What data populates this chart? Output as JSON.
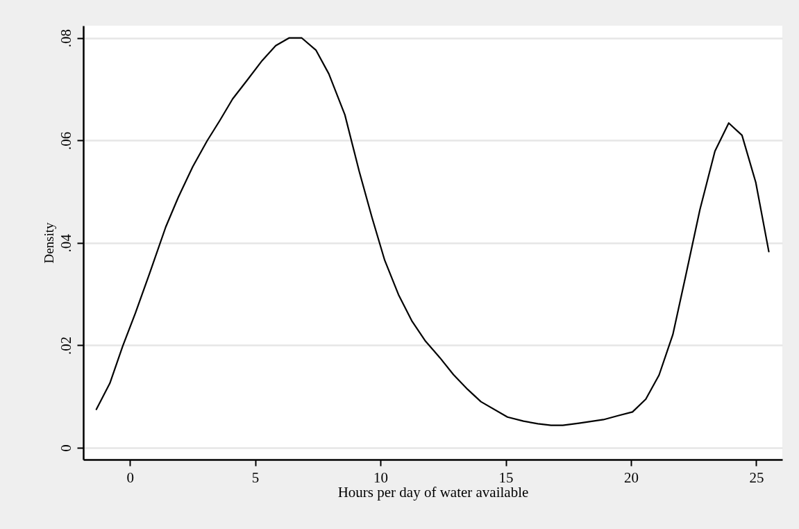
{
  "chart_data": {
    "type": "line",
    "xlabel": "Hours per day of water available",
    "ylabel": "Density",
    "x": [
      -1.34,
      -0.8,
      -0.29,
      0.22,
      0.79,
      1.43,
      1.94,
      2.51,
      3.08,
      3.59,
      4.1,
      4.67,
      5.28,
      5.82,
      6.35,
      6.86,
      7.43,
      7.94,
      8.58,
      9.15,
      9.66,
      10.17,
      10.72,
      11.25,
      11.8,
      12.37,
      12.91,
      13.48,
      14.01,
      15.07,
      15.71,
      16.28,
      16.81,
      17.28,
      17.92,
      18.9,
      19.51,
      20.06,
      20.59,
      21.12,
      21.67,
      22.18,
      22.75,
      23.35,
      23.9,
      24.43,
      24.98,
      25.5
    ],
    "series": [
      {
        "color": "#000000",
        "values": [
          0.0075,
          0.0126,
          0.0198,
          0.0263,
          0.0341,
          0.0431,
          0.049,
          0.0549,
          0.0599,
          0.0639,
          0.0681,
          0.0717,
          0.0756,
          0.0785,
          0.08,
          0.08,
          0.0776,
          0.073,
          0.065,
          0.054,
          0.045,
          0.0366,
          0.0299,
          0.0248,
          0.0208,
          0.0176,
          0.0143,
          0.0114,
          0.009,
          0.006,
          0.0052,
          0.0047,
          0.0044,
          0.0044,
          0.0048,
          0.0055,
          0.0063,
          0.007,
          0.0095,
          0.0142,
          0.0221,
          0.0335,
          0.0465,
          0.0579,
          0.0634,
          0.061,
          0.0518,
          0.0383
        ]
      }
    ],
    "xlim": [
      -1.86,
      26.04
    ],
    "ylim": [
      -0.0023,
      0.0824
    ],
    "xticks": [
      0,
      5,
      10,
      15,
      20,
      25
    ],
    "yticks": [
      0,
      {
        "value": 0.02,
        "label": ".02"
      },
      {
        "value": 0.04,
        "label": ".04"
      },
      {
        "value": 0.06,
        "label": ".06"
      },
      {
        "value": 0.08,
        "label": ".08"
      }
    ],
    "grid": "y"
  }
}
